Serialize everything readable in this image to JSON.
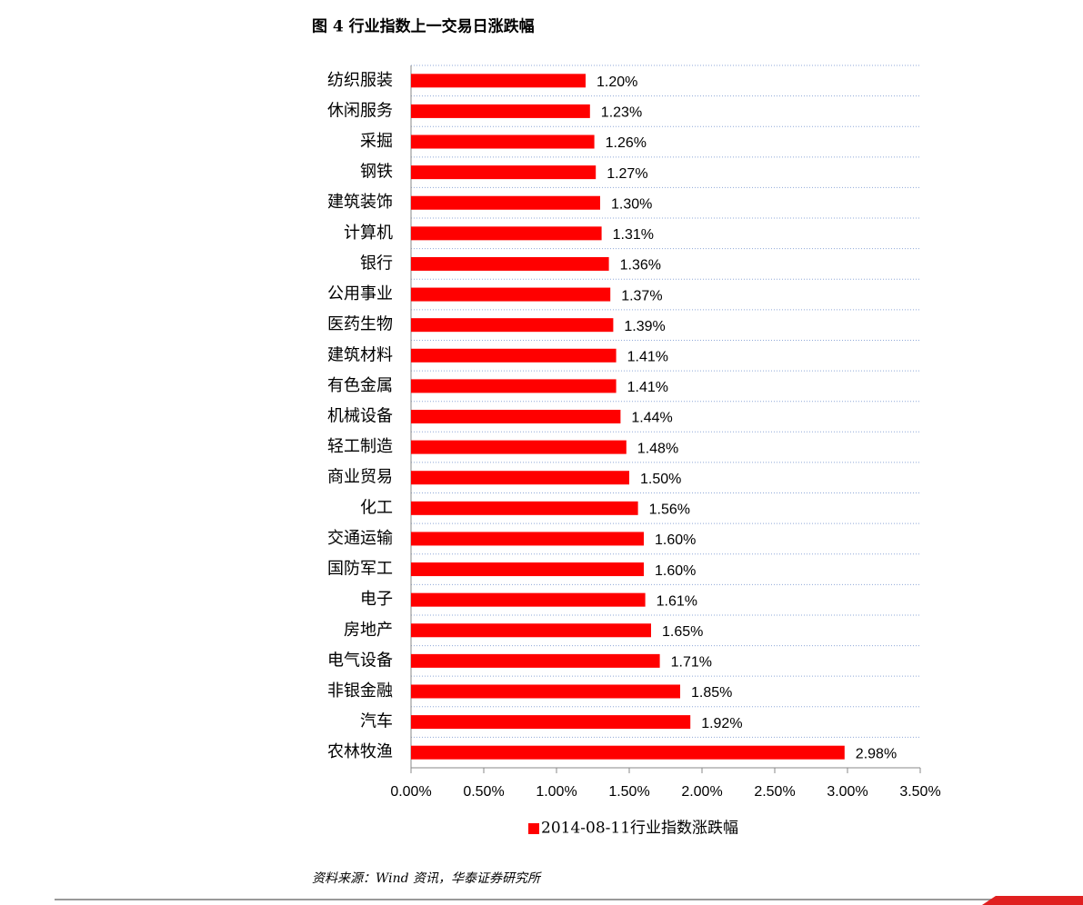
{
  "chart_data": {
    "type": "bar",
    "orientation": "horizontal",
    "title": "图 4   行业指数上一交易日涨跌幅",
    "categories": [
      "纺织服装",
      "休闲服务",
      "采掘",
      "钢铁",
      "建筑装饰",
      "计算机",
      "银行",
      "公用事业",
      "医药生物",
      "建筑材料",
      "有色金属",
      "机械设备",
      "轻工制造",
      "商业贸易",
      "化工",
      "交通运输",
      "国防军工",
      "电子",
      "房地产",
      "电气设备",
      "非银金融",
      "汽车",
      "农林牧渔"
    ],
    "series": [
      {
        "name": "2014-08-11行业指数涨跌幅",
        "color": "#ff0000",
        "values": [
          1.2,
          1.23,
          1.26,
          1.27,
          1.3,
          1.31,
          1.36,
          1.37,
          1.39,
          1.41,
          1.41,
          1.44,
          1.48,
          1.5,
          1.56,
          1.6,
          1.6,
          1.61,
          1.65,
          1.71,
          1.85,
          1.92,
          2.98
        ],
        "value_labels": [
          "1.20%",
          "1.23%",
          "1.26%",
          "1.27%",
          "1.30%",
          "1.31%",
          "1.36%",
          "1.37%",
          "1.39%",
          "1.41%",
          "1.41%",
          "1.44%",
          "1.48%",
          "1.50%",
          "1.56%",
          "1.60%",
          "1.60%",
          "1.61%",
          "1.65%",
          "1.71%",
          "1.85%",
          "1.92%",
          "2.98%"
        ]
      }
    ],
    "xlim": [
      0,
      3.5
    ],
    "xticks": [
      {
        "value": 0,
        "label": "0.00%"
      },
      {
        "value": 0.5,
        "label": "0.50%"
      },
      {
        "value": 1,
        "label": "1.00%"
      },
      {
        "value": 1.5,
        "label": "1.50%"
      },
      {
        "value": 2,
        "label": "2.00%"
      },
      {
        "value": 2.5,
        "label": "2.50%"
      },
      {
        "value": 3,
        "label": "3.00%"
      },
      {
        "value": 3.5,
        "label": "3.50%"
      }
    ],
    "grid": true,
    "legend": "bottom",
    "source": "资料来源：Wind 资讯，华泰证券研究所"
  }
}
